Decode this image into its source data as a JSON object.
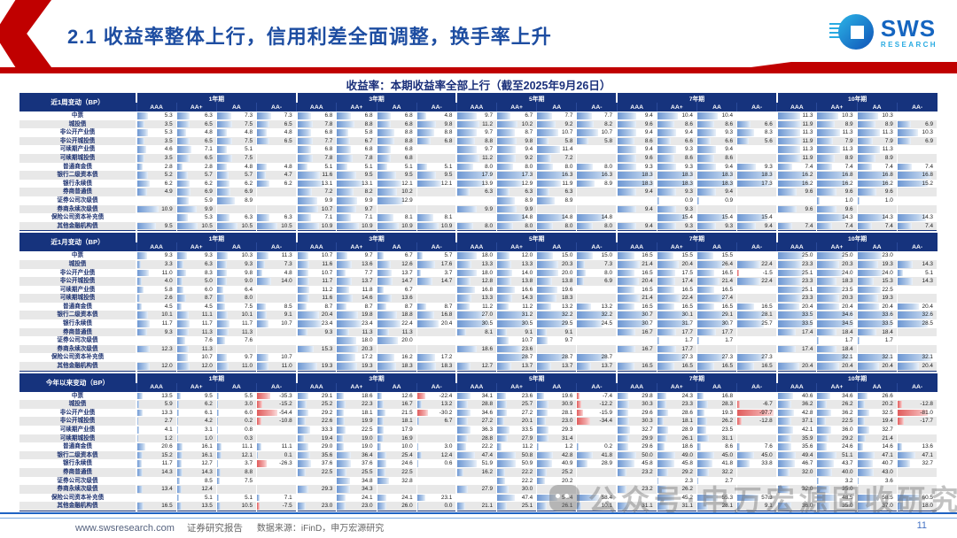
{
  "header": {
    "title": "2.1 收益率整体上行，信用利差全面调整，换手率上升"
  },
  "logo": {
    "name": "SWS",
    "sub": "RESEARCH"
  },
  "banner": {
    "text": "收益率：本期收益率全部上行（截至2025年9月26日）"
  },
  "columns": {
    "tenors": [
      "1年期",
      "3年期",
      "5年期",
      "7年期",
      "10年期"
    ],
    "ratings": [
      "AAA",
      "AA+",
      "AA",
      "AA-"
    ]
  },
  "tables": [
    {
      "title": "近1周变动（BP）",
      "rows": [
        {
          "label": "中票",
          "values": [
            5.3,
            6.3,
            7.3,
            7.3,
            6.8,
            6.8,
            6.8,
            4.8,
            9.7,
            6.7,
            7.7,
            7.7,
            9.4,
            10.4,
            10.4,
            null,
            11.3,
            10.3,
            10.3,
            null
          ]
        },
        {
          "label": "城投债",
          "values": [
            3.5,
            6.5,
            7.5,
            6.5,
            7.8,
            8.8,
            6.8,
            9.8,
            11.2,
            10.2,
            9.2,
            8.2,
            9.6,
            8.6,
            8.6,
            6.6,
            11.9,
            8.9,
            8.9,
            6.9
          ]
        },
        {
          "label": "非公开产业债",
          "values": [
            5.3,
            4.8,
            4.8,
            4.8,
            6.8,
            5.8,
            8.8,
            8.8,
            9.7,
            8.7,
            10.7,
            10.7,
            9.4,
            9.4,
            9.3,
            8.3,
            11.3,
            11.3,
            11.3,
            10.3
          ]
        },
        {
          "label": "非公开城投债",
          "values": [
            3.5,
            6.5,
            7.5,
            6.5,
            7.7,
            6.7,
            8.8,
            6.8,
            8.8,
            9.8,
            5.8,
            5.8,
            8.6,
            6.6,
            6.6,
            5.6,
            11.9,
            7.9,
            7.9,
            6.9
          ]
        },
        {
          "label": "可续期产业债",
          "values": [
            4.6,
            7.1,
            5.1,
            null,
            6.8,
            6.8,
            6.8,
            null,
            9.7,
            9.4,
            11.4,
            null,
            9.4,
            9.3,
            9.4,
            null,
            11.3,
            11.3,
            11.3,
            null
          ]
        },
        {
          "label": "可续期城投债",
          "values": [
            3.5,
            6.5,
            7.5,
            null,
            7.8,
            7.8,
            6.8,
            null,
            11.2,
            9.2,
            7.2,
            null,
            9.6,
            8.6,
            8.6,
            null,
            11.9,
            8.9,
            8.9,
            null
          ]
        },
        {
          "label": "普通商金债",
          "values": [
            2.8,
            2.8,
            4.8,
            4.8,
            5.1,
            5.1,
            5.1,
            5.1,
            8.0,
            8.0,
            8.0,
            8.0,
            9.3,
            9.3,
            9.4,
            9.3,
            7.4,
            7.4,
            7.4,
            7.4
          ]
        },
        {
          "label": "银行二级资本债",
          "values": [
            5.2,
            5.7,
            5.7,
            4.7,
            11.6,
            9.5,
            9.5,
            9.5,
            17.9,
            17.3,
            16.3,
            16.3,
            18.3,
            18.3,
            18.3,
            18.3,
            16.2,
            16.8,
            16.8,
            16.8
          ]
        },
        {
          "label": "银行永续债",
          "values": [
            6.2,
            6.2,
            6.2,
            6.2,
            13.1,
            13.1,
            12.1,
            12.1,
            13.9,
            12.9,
            11.9,
            8.9,
            18.3,
            18.3,
            18.3,
            17.3,
            16.2,
            16.2,
            16.2,
            15.2
          ]
        },
        {
          "label": "券商普通债",
          "values": [
            4.9,
            6.9,
            6.9,
            null,
            7.2,
            8.2,
            10.2,
            null,
            6.3,
            6.3,
            6.3,
            null,
            9.4,
            9.3,
            9.4,
            null,
            9.6,
            9.6,
            9.6,
            null
          ]
        },
        {
          "label": "证券公司次级债",
          "values": [
            null,
            5.9,
            8.9,
            null,
            9.9,
            9.9,
            12.9,
            null,
            null,
            8.9,
            8.9,
            null,
            null,
            0.9,
            0.9,
            null,
            null,
            1.0,
            1.0,
            null
          ]
        },
        {
          "label": "券商永续次级债",
          "values": [
            10.9,
            9.9,
            null,
            null,
            10.7,
            9.7,
            null,
            null,
            9.9,
            9.9,
            null,
            null,
            9.4,
            9.3,
            null,
            null,
            9.6,
            9.6,
            null,
            null
          ]
        },
        {
          "label": "保险公司资本补充债",
          "values": [
            null,
            5.3,
            6.3,
            6.3,
            7.1,
            7.1,
            8.1,
            8.1,
            null,
            14.8,
            14.8,
            14.8,
            null,
            15.4,
            15.4,
            15.4,
            null,
            14.3,
            14.3,
            14.3
          ]
        },
        {
          "label": "其他金融机构债",
          "values": [
            9.5,
            10.5,
            10.5,
            10.5,
            10.9,
            10.9,
            10.9,
            10.9,
            8.0,
            8.0,
            8.0,
            8.0,
            9.4,
            9.3,
            9.3,
            9.4,
            7.4,
            7.4,
            7.4,
            7.4
          ]
        }
      ]
    },
    {
      "title": "近1月变动（BP）",
      "rows": [
        {
          "label": "中票",
          "values": [
            9.3,
            9.3,
            10.3,
            11.3,
            10.7,
            9.7,
            6.7,
            5.7,
            18.0,
            12.0,
            15.0,
            15.0,
            16.5,
            15.5,
            15.5,
            null,
            25.0,
            25.0,
            23.0,
            null
          ]
        },
        {
          "label": "城投债",
          "values": [
            3.3,
            6.3,
            9.3,
            7.3,
            11.6,
            13.6,
            12.6,
            17.6,
            13.3,
            13.3,
            20.3,
            7.3,
            21.4,
            20.4,
            26.4,
            22.4,
            23.3,
            20.3,
            19.3,
            14.3
          ]
        },
        {
          "label": "非公开产业债",
          "values": [
            11.0,
            8.3,
            9.8,
            4.8,
            10.7,
            7.7,
            13.7,
            3.7,
            18.0,
            14.0,
            20.0,
            8.0,
            16.5,
            17.5,
            16.5,
            -1.5,
            25.1,
            24.0,
            24.0,
            5.1
          ]
        },
        {
          "label": "非公开城投债",
          "values": [
            4.0,
            5.0,
            9.0,
            14.0,
            11.7,
            13.7,
            14.7,
            14.7,
            12.8,
            13.8,
            13.8,
            6.9,
            20.4,
            17.4,
            21.4,
            22.4,
            23.3,
            18.3,
            15.3,
            14.3
          ]
        },
        {
          "label": "可续期产业债",
          "values": [
            5.8,
            6.0,
            6.4,
            null,
            11.2,
            11.8,
            6.7,
            null,
            16.8,
            16.6,
            19.6,
            null,
            16.5,
            16.5,
            16.5,
            null,
            25.1,
            23.5,
            22.5,
            null
          ]
        },
        {
          "label": "可续期城投债",
          "values": [
            2.6,
            8.7,
            8.0,
            null,
            11.6,
            14.6,
            13.6,
            null,
            13.3,
            14.3,
            18.3,
            null,
            21.4,
            22.4,
            27.4,
            null,
            23.3,
            20.3,
            19.3,
            null
          ]
        },
        {
          "label": "普通商金债",
          "values": [
            4.5,
            4.5,
            7.5,
            8.5,
            8.7,
            8.7,
            8.7,
            8.7,
            11.2,
            11.2,
            13.2,
            13.2,
            16.5,
            16.5,
            16.5,
            16.5,
            20.4,
            20.4,
            20.4,
            20.4
          ]
        },
        {
          "label": "银行二级资本债",
          "values": [
            10.1,
            11.1,
            10.1,
            9.1,
            20.4,
            19.8,
            18.8,
            16.8,
            27.0,
            31.2,
            32.2,
            32.2,
            30.7,
            30.1,
            29.1,
            28.1,
            33.5,
            34.6,
            33.6,
            32.6
          ]
        },
        {
          "label": "银行永续债",
          "values": [
            11.7,
            11.7,
            11.7,
            10.7,
            23.4,
            23.4,
            22.4,
            20.4,
            30.5,
            30.5,
            29.5,
            24.5,
            30.7,
            31.7,
            30.7,
            25.7,
            33.5,
            34.5,
            33.5,
            28.5
          ]
        },
        {
          "label": "券商普通债",
          "values": [
            9.3,
            11.3,
            11.3,
            null,
            9.3,
            11.3,
            11.3,
            null,
            8.1,
            9.1,
            9.1,
            null,
            16.7,
            17.7,
            17.7,
            null,
            17.4,
            18.4,
            18.4,
            null
          ]
        },
        {
          "label": "证券公司次级债",
          "values": [
            null,
            7.6,
            7.6,
            null,
            null,
            18.0,
            20.0,
            null,
            null,
            10.7,
            9.7,
            null,
            null,
            1.7,
            1.7,
            null,
            null,
            1.7,
            1.7,
            null
          ]
        },
        {
          "label": "券商永续次级债",
          "values": [
            12.3,
            11.3,
            null,
            null,
            15.3,
            20.3,
            null,
            null,
            18.6,
            23.6,
            null,
            null,
            16.7,
            17.7,
            null,
            null,
            17.4,
            18.4,
            null,
            null
          ]
        },
        {
          "label": "保险公司资本补充债",
          "values": [
            null,
            10.7,
            9.7,
            10.7,
            null,
            17.2,
            16.2,
            17.2,
            null,
            28.7,
            28.7,
            28.7,
            null,
            27.3,
            27.3,
            27.3,
            null,
            32.1,
            32.1,
            32.1
          ]
        },
        {
          "label": "其他金融机构债",
          "values": [
            12.0,
            12.0,
            11.0,
            11.0,
            19.3,
            19.3,
            18.3,
            18.3,
            12.7,
            13.7,
            13.7,
            13.7,
            16.5,
            16.5,
            16.5,
            16.5,
            20.4,
            20.4,
            20.4,
            20.4
          ]
        }
      ]
    },
    {
      "title": "今年以来变动（BP）",
      "rows": [
        {
          "label": "中票",
          "values": [
            13.5,
            9.5,
            5.5,
            -35.3,
            29.1,
            18.6,
            12.6,
            -22.4,
            34.1,
            23.6,
            19.6,
            -7.4,
            29.8,
            24.3,
            16.8,
            null,
            40.6,
            34.6,
            26.6,
            null
          ]
        },
        {
          "label": "城投债",
          "values": [
            5.9,
            6.2,
            3.0,
            -15.2,
            25.2,
            22.3,
            16.7,
            13.2,
            28.8,
            25.7,
            30.9,
            -12.2,
            30.3,
            23.3,
            28.3,
            -6.7,
            36.2,
            26.2,
            20.2,
            -12.8
          ]
        },
        {
          "label": "非公开产业债",
          "values": [
            13.3,
            6.1,
            6.0,
            -54.4,
            29.2,
            18.1,
            21.5,
            -30.2,
            34.6,
            27.2,
            28.1,
            -15.9,
            29.6,
            28.6,
            19.3,
            -97.7,
            42.8,
            36.2,
            32.5,
            -81.0
          ]
        },
        {
          "label": "非公开城投债",
          "values": [
            2.7,
            4.2,
            0.2,
            -10.8,
            22.6,
            19.9,
            18.1,
            6.7,
            27.2,
            20.1,
            23.0,
            -34.4,
            30.3,
            18.1,
            26.2,
            -12.8,
            37.1,
            22.5,
            19.4,
            -17.7
          ]
        },
        {
          "label": "可续期产业债",
          "values": [
            4.1,
            3.1,
            0.8,
            null,
            33.3,
            22.5,
            17.9,
            null,
            36.3,
            33.5,
            29.3,
            null,
            32.7,
            28.9,
            23.5,
            null,
            42.1,
            36.0,
            32.7,
            null
          ]
        },
        {
          "label": "可续期城投债",
          "values": [
            1.2,
            1.0,
            0.3,
            null,
            19.4,
            19.0,
            16.9,
            null,
            28.8,
            27.9,
            31.4,
            null,
            29.9,
            26.1,
            31.1,
            null,
            35.9,
            29.2,
            21.4,
            null
          ]
        },
        {
          "label": "普通商金债",
          "values": [
            20.6,
            16.1,
            11.1,
            11.1,
            29.0,
            19.0,
            10.0,
            3.0,
            22.2,
            11.2,
            1.2,
            0.2,
            29.6,
            18.6,
            8.6,
            7.6,
            35.6,
            24.6,
            14.6,
            13.6
          ]
        },
        {
          "label": "银行二级资本债",
          "values": [
            15.2,
            16.1,
            12.1,
            0.1,
            35.6,
            36.4,
            25.4,
            12.4,
            47.4,
            50.8,
            42.8,
            41.8,
            50.0,
            49.0,
            45.0,
            45.0,
            49.4,
            51.1,
            47.1,
            47.1
          ]
        },
        {
          "label": "银行永续债",
          "values": [
            11.7,
            12.7,
            3.7,
            -26.3,
            37.6,
            37.6,
            24.6,
            0.6,
            51.9,
            50.9,
            40.9,
            28.9,
            45.8,
            45.8,
            41.8,
            33.8,
            46.7,
            43.7,
            40.7,
            32.7
          ]
        },
        {
          "label": "券商普通债",
          "values": [
            14.3,
            14.3,
            8.8,
            null,
            22.5,
            25.5,
            22.5,
            null,
            16.2,
            22.2,
            25.2,
            null,
            23.2,
            29.2,
            32.2,
            null,
            32.0,
            40.0,
            43.0,
            null
          ]
        },
        {
          "label": "证券公司次级债",
          "values": [
            null,
            8.5,
            7.5,
            null,
            null,
            34.8,
            32.8,
            null,
            null,
            22.2,
            20.2,
            null,
            null,
            2.3,
            2.7,
            null,
            null,
            3.2,
            3.6,
            null
          ]
        },
        {
          "label": "券商永续次级债",
          "values": [
            13.4,
            12.4,
            null,
            null,
            29.3,
            34.3,
            null,
            null,
            27.9,
            30.0,
            null,
            null,
            23.2,
            26.2,
            null,
            null,
            32.0,
            35.0,
            null,
            null
          ]
        },
        {
          "label": "保险公司资本补充债",
          "values": [
            null,
            5.1,
            5.1,
            7.1,
            null,
            24.1,
            24.1,
            23.1,
            null,
            47.4,
            54.4,
            58.4,
            null,
            45.2,
            55.3,
            57.3,
            null,
            48.5,
            58.5,
            60.5
          ]
        },
        {
          "label": "其他金融机构债",
          "values": [
            16.5,
            13.5,
            10.5,
            -7.5,
            23.0,
            23.0,
            26.0,
            0.0,
            21.1,
            25.1,
            26.1,
            10.1,
            31.1,
            31.1,
            28.1,
            9.1,
            36.0,
            35.0,
            37.0,
            18.0
          ]
        }
      ]
    }
  ],
  "watermark": {
    "text": "公众号·申万宏源固收研究"
  },
  "footer": {
    "site": "www.swsresearch.com",
    "report": "证券研究报告",
    "source": "数据来源：iFinD，申万宏源研究",
    "page": "11"
  },
  "colors": {
    "accent_red": "#c00000",
    "header_navy": "#16337d",
    "title_blue": "#1d4da1",
    "bar_blue": "#6d97d3",
    "bar_red": "#e05c5c"
  }
}
